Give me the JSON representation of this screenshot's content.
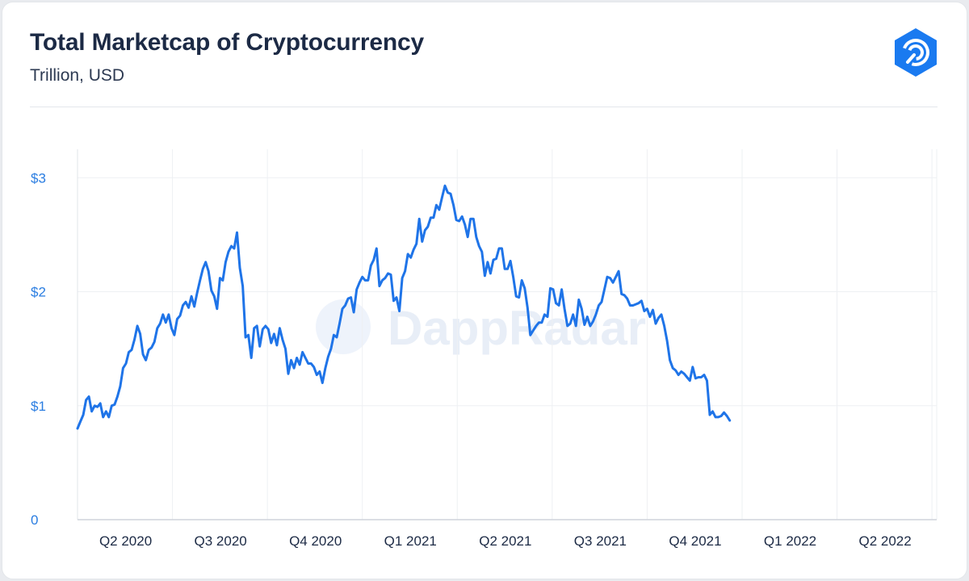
{
  "header": {
    "title": "Total Marketcap of Cryptocurrency",
    "subtitle": "Trillion, USD",
    "logo_icon": "dappradar-logo-icon"
  },
  "watermark": "DappRadar",
  "colors": {
    "line": "#1f74e8",
    "tick": "#2a7de1",
    "grid": "#eef0f3",
    "brand": "#1a7af0"
  },
  "chart_data": {
    "type": "line",
    "title": "Total Marketcap of Cryptocurrency",
    "subtitle": "Trillion, USD",
    "xlabel": "",
    "ylabel": "",
    "ylim": [
      0,
      3.25
    ],
    "xlim": [
      0,
      9.05
    ],
    "y_ticks": [
      {
        "value": 0,
        "label": "0"
      },
      {
        "value": 1,
        "label": "$1"
      },
      {
        "value": 2,
        "label": "$2"
      },
      {
        "value": 3,
        "label": "$3"
      }
    ],
    "x_ticks": [
      {
        "value": 1,
        "label": "Q2 2020"
      },
      {
        "value": 2,
        "label": "Q3 2020"
      },
      {
        "value": 3,
        "label": "Q4 2020"
      },
      {
        "value": 4,
        "label": "Q1 2021"
      },
      {
        "value": 5,
        "label": "Q2 2021"
      },
      {
        "value": 6,
        "label": "Q3 2021"
      },
      {
        "value": 7,
        "label": "Q4 2021"
      },
      {
        "value": 8,
        "label": "Q1 2022"
      },
      {
        "value": 9,
        "label": "Q2 2022"
      }
    ],
    "grid": true,
    "legend": "none",
    "series": [
      {
        "name": "",
        "points": [
          [
            0.0,
            0.8
          ],
          [
            0.03,
            0.86
          ],
          [
            0.06,
            0.92
          ],
          [
            0.09,
            1.05
          ],
          [
            0.12,
            1.08
          ],
          [
            0.15,
            0.95
          ],
          [
            0.18,
            1.0
          ],
          [
            0.21,
            0.99
          ],
          [
            0.24,
            1.02
          ],
          [
            0.27,
            0.9
          ],
          [
            0.3,
            0.95
          ],
          [
            0.33,
            0.9
          ],
          [
            0.36,
            1.0
          ],
          [
            0.39,
            1.01
          ],
          [
            0.42,
            1.08
          ],
          [
            0.45,
            1.17
          ],
          [
            0.48,
            1.33
          ],
          [
            0.51,
            1.37
          ],
          [
            0.54,
            1.47
          ],
          [
            0.57,
            1.49
          ],
          [
            0.6,
            1.58
          ],
          [
            0.63,
            1.7
          ],
          [
            0.66,
            1.63
          ],
          [
            0.69,
            1.45
          ],
          [
            0.72,
            1.4
          ],
          [
            0.75,
            1.49
          ],
          [
            0.78,
            1.51
          ],
          [
            0.81,
            1.56
          ],
          [
            0.84,
            1.68
          ],
          [
            0.87,
            1.72
          ],
          [
            0.9,
            1.8
          ],
          [
            0.93,
            1.73
          ],
          [
            0.96,
            1.8
          ],
          [
            0.99,
            1.68
          ],
          [
            1.02,
            1.62
          ],
          [
            1.05,
            1.76
          ],
          [
            1.08,
            1.79
          ],
          [
            1.11,
            1.88
          ],
          [
            1.14,
            1.91
          ],
          [
            1.17,
            1.86
          ],
          [
            1.2,
            1.96
          ],
          [
            1.23,
            1.87
          ],
          [
            1.26,
            1.99
          ],
          [
            1.29,
            2.1
          ],
          [
            1.32,
            2.2
          ],
          [
            1.35,
            2.26
          ],
          [
            1.38,
            2.18
          ],
          [
            1.41,
            2.01
          ],
          [
            1.44,
            1.96
          ],
          [
            1.47,
            1.85
          ],
          [
            1.5,
            2.12
          ],
          [
            1.53,
            2.1
          ],
          [
            1.56,
            2.26
          ],
          [
            1.59,
            2.35
          ],
          [
            1.62,
            2.4
          ],
          [
            1.65,
            2.38
          ],
          [
            1.68,
            2.52
          ],
          [
            1.71,
            2.21
          ],
          [
            1.74,
            2.05
          ],
          [
            1.77,
            1.6
          ],
          [
            1.8,
            1.62
          ],
          [
            1.83,
            1.42
          ],
          [
            1.86,
            1.68
          ],
          [
            1.89,
            1.7
          ],
          [
            1.92,
            1.52
          ],
          [
            1.95,
            1.67
          ],
          [
            1.98,
            1.7
          ],
          [
            2.01,
            1.67
          ],
          [
            2.04,
            1.55
          ],
          [
            2.07,
            1.63
          ],
          [
            2.1,
            1.53
          ],
          [
            2.13,
            1.68
          ],
          [
            2.16,
            1.58
          ],
          [
            2.19,
            1.5
          ],
          [
            2.22,
            1.28
          ],
          [
            2.25,
            1.4
          ],
          [
            2.28,
            1.33
          ],
          [
            2.31,
            1.42
          ],
          [
            2.34,
            1.36
          ],
          [
            2.37,
            1.47
          ],
          [
            2.4,
            1.42
          ],
          [
            2.43,
            1.37
          ],
          [
            2.46,
            1.37
          ],
          [
            2.49,
            1.34
          ],
          [
            2.52,
            1.27
          ],
          [
            2.55,
            1.3
          ],
          [
            2.58,
            1.2
          ],
          [
            2.61,
            1.33
          ],
          [
            2.64,
            1.43
          ],
          [
            2.67,
            1.5
          ],
          [
            2.7,
            1.62
          ],
          [
            2.73,
            1.6
          ],
          [
            2.76,
            1.72
          ],
          [
            2.79,
            1.85
          ],
          [
            2.82,
            1.88
          ],
          [
            2.85,
            1.94
          ],
          [
            2.88,
            1.95
          ],
          [
            2.91,
            1.82
          ],
          [
            2.94,
            2.02
          ],
          [
            2.97,
            2.08
          ],
          [
            3.0,
            2.13
          ],
          [
            3.03,
            2.1
          ],
          [
            3.06,
            2.1
          ],
          [
            3.09,
            2.23
          ],
          [
            3.12,
            2.28
          ],
          [
            3.15,
            2.38
          ],
          [
            3.18,
            2.05
          ],
          [
            3.21,
            2.1
          ],
          [
            3.24,
            2.12
          ],
          [
            3.27,
            2.16
          ],
          [
            3.3,
            2.15
          ],
          [
            3.33,
            1.92
          ],
          [
            3.36,
            1.95
          ],
          [
            3.39,
            1.83
          ],
          [
            3.42,
            2.12
          ],
          [
            3.45,
            2.18
          ],
          [
            3.48,
            2.33
          ],
          [
            3.51,
            2.3
          ],
          [
            3.54,
            2.37
          ],
          [
            3.57,
            2.42
          ],
          [
            3.6,
            2.64
          ],
          [
            3.63,
            2.44
          ],
          [
            3.66,
            2.54
          ],
          [
            3.69,
            2.57
          ],
          [
            3.72,
            2.65
          ],
          [
            3.75,
            2.65
          ],
          [
            3.78,
            2.76
          ],
          [
            3.81,
            2.72
          ],
          [
            3.84,
            2.83
          ],
          [
            3.87,
            2.93
          ],
          [
            3.9,
            2.87
          ],
          [
            3.93,
            2.86
          ],
          [
            3.96,
            2.76
          ],
          [
            3.99,
            2.63
          ],
          [
            4.02,
            2.62
          ],
          [
            4.05,
            2.66
          ],
          [
            4.08,
            2.59
          ],
          [
            4.11,
            2.48
          ],
          [
            4.14,
            2.64
          ],
          [
            4.17,
            2.64
          ],
          [
            4.2,
            2.48
          ],
          [
            4.23,
            2.4
          ],
          [
            4.26,
            2.35
          ],
          [
            4.29,
            2.14
          ],
          [
            4.32,
            2.26
          ],
          [
            4.35,
            2.16
          ],
          [
            4.38,
            2.28
          ],
          [
            4.41,
            2.29
          ],
          [
            4.44,
            2.38
          ],
          [
            4.47,
            2.38
          ],
          [
            4.5,
            2.2
          ],
          [
            4.53,
            2.2
          ],
          [
            4.56,
            2.27
          ],
          [
            4.59,
            2.13
          ],
          [
            4.62,
            1.96
          ],
          [
            4.65,
            1.95
          ],
          [
            4.68,
            2.1
          ],
          [
            4.71,
            2.03
          ],
          [
            4.74,
            1.86
          ],
          [
            4.77,
            1.62
          ],
          [
            4.8,
            1.66
          ],
          [
            4.83,
            1.7
          ],
          [
            4.86,
            1.73
          ],
          [
            4.89,
            1.73
          ],
          [
            4.92,
            1.8
          ],
          [
            4.95,
            1.78
          ],
          [
            4.98,
            2.03
          ],
          [
            5.01,
            2.02
          ],
          [
            5.04,
            1.9
          ],
          [
            5.07,
            1.88
          ],
          [
            5.1,
            2.02
          ],
          [
            5.13,
            1.85
          ],
          [
            5.16,
            1.7
          ],
          [
            5.19,
            1.72
          ],
          [
            5.22,
            1.8
          ],
          [
            5.25,
            1.7
          ],
          [
            5.28,
            1.93
          ],
          [
            5.31,
            1.85
          ],
          [
            5.34,
            1.71
          ],
          [
            5.37,
            1.78
          ],
          [
            5.4,
            1.7
          ],
          [
            5.43,
            1.74
          ],
          [
            5.46,
            1.8
          ],
          [
            5.49,
            1.88
          ],
          [
            5.52,
            1.91
          ],
          [
            5.55,
            2.02
          ],
          [
            5.58,
            2.13
          ],
          [
            5.61,
            2.12
          ],
          [
            5.64,
            2.08
          ],
          [
            5.67,
            2.13
          ],
          [
            5.7,
            2.18
          ],
          [
            5.73,
            1.98
          ],
          [
            5.76,
            1.97
          ],
          [
            5.79,
            1.94
          ],
          [
            5.82,
            1.88
          ],
          [
            5.85,
            1.88
          ],
          [
            5.88,
            1.89
          ],
          [
            5.91,
            1.9
          ],
          [
            5.94,
            1.92
          ],
          [
            5.97,
            1.83
          ],
          [
            6.0,
            1.85
          ],
          [
            6.03,
            1.78
          ],
          [
            6.06,
            1.84
          ],
          [
            6.09,
            1.72
          ],
          [
            6.12,
            1.77
          ],
          [
            6.15,
            1.8
          ],
          [
            6.18,
            1.7
          ],
          [
            6.21,
            1.57
          ],
          [
            6.24,
            1.4
          ],
          [
            6.27,
            1.33
          ],
          [
            6.3,
            1.31
          ],
          [
            6.33,
            1.27
          ],
          [
            6.36,
            1.3
          ],
          [
            6.39,
            1.28
          ],
          [
            6.42,
            1.25
          ],
          [
            6.45,
            1.22
          ],
          [
            6.48,
            1.34
          ],
          [
            6.51,
            1.24
          ],
          [
            6.54,
            1.25
          ],
          [
            6.57,
            1.25
          ],
          [
            6.6,
            1.27
          ],
          [
            6.63,
            1.22
          ],
          [
            6.66,
            0.92
          ],
          [
            6.69,
            0.95
          ],
          [
            6.72,
            0.9
          ],
          [
            6.75,
            0.9
          ],
          [
            6.78,
            0.91
          ],
          [
            6.81,
            0.94
          ],
          [
            6.84,
            0.91
          ],
          [
            6.87,
            0.87
          ]
        ]
      }
    ]
  }
}
